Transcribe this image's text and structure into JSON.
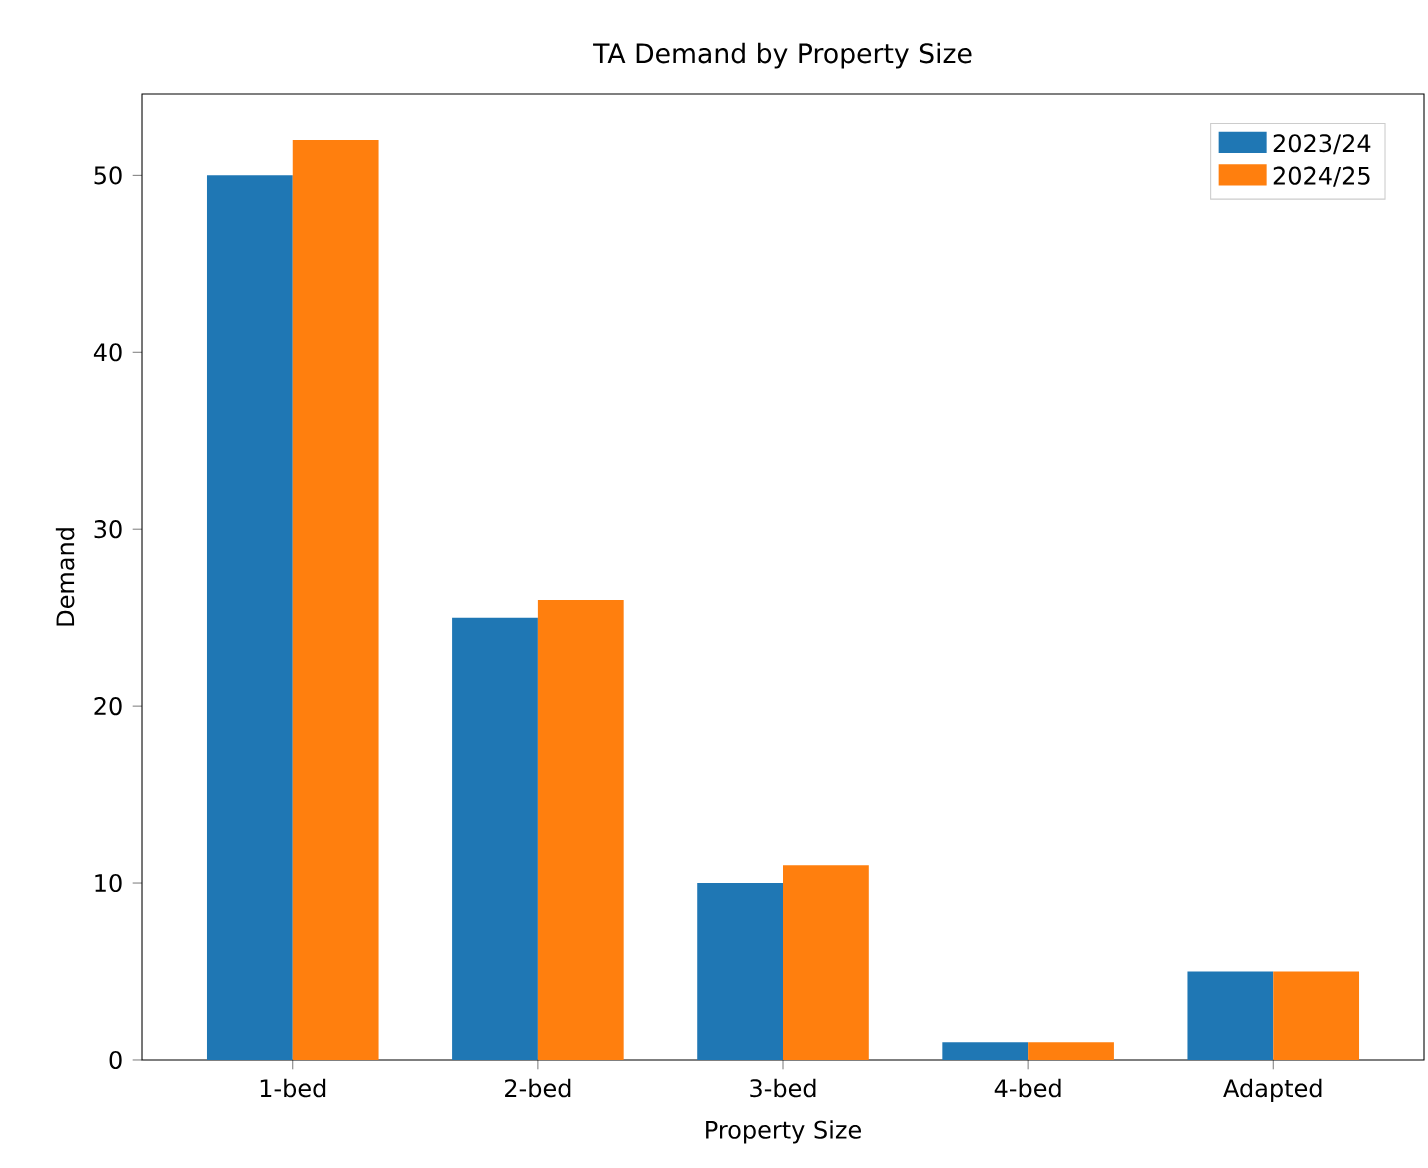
{
  "chart_data": {
    "type": "bar",
    "title": "TA Demand by Property Size",
    "xlabel": "Property Size",
    "ylabel": "Demand",
    "categories": [
      "1-bed",
      "2-bed",
      "3-bed",
      "4-bed",
      "Adapted"
    ],
    "series": [
      {
        "name": "2023/24",
        "color": "#1f77b4",
        "values": [
          50,
          25,
          10,
          1,
          5
        ]
      },
      {
        "name": "2024/25",
        "color": "#ff7f0e",
        "values": [
          52,
          26,
          11,
          1,
          5
        ]
      }
    ],
    "ylim": [
      0,
      54.6
    ],
    "yticks": [
      0,
      10,
      20,
      30,
      40,
      50
    ],
    "legend": "top right"
  }
}
